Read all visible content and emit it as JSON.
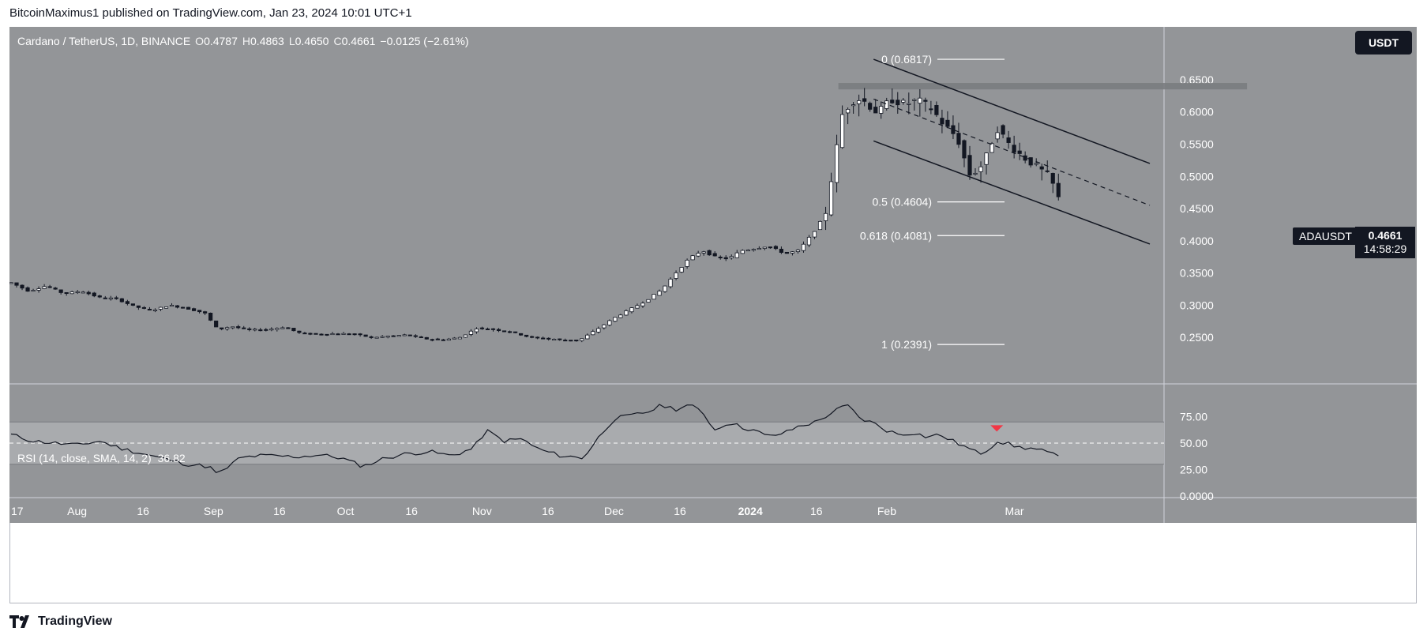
{
  "header": {
    "published": "BitcoinMaximus1 published on TradingView.com, Jan 23, 2024 10:01 UTC+1"
  },
  "legend": {
    "symbol": "Cardano / TetherUS, 1D, BINANCE",
    "o_label": "O",
    "o": "0.4787",
    "h_label": "H",
    "h": "0.4863",
    "l_label": "L",
    "l": "0.4650",
    "c_label": "C",
    "c": "0.4661",
    "change": "−0.0125 (−2.61%)"
  },
  "currency_button": "USDT",
  "symbol_tag": "ADAUSDT",
  "price_tag": {
    "price": "0.4661",
    "countdown": "14:58:29"
  },
  "rsi_legend": {
    "label": "RSI (14, close, SMA, 14, 2)",
    "value": "36.82"
  },
  "footer": {
    "brand": "TradingView"
  },
  "colors": {
    "pane_bg": "#939598",
    "rsi_band": "#a9abae",
    "candle_up": "#ffffff",
    "candle_down": "#131722",
    "marker": "#f23645"
  },
  "chart_data": {
    "type": "candlestick",
    "price_axis": {
      "range": [
        0.2,
        0.71
      ],
      "ticks": [
        0.65,
        0.6,
        0.55,
        0.5,
        0.45,
        0.4,
        0.35,
        0.3,
        0.25
      ],
      "tick_labels": [
        "0.6500",
        "0.6000",
        "0.5500",
        "0.5000",
        "0.4500",
        "0.4000",
        "0.3500",
        "0.3000",
        "0.2500"
      ]
    },
    "time_axis": {
      "labels": [
        "17",
        "Aug",
        "16",
        "Sep",
        "16",
        "Oct",
        "16",
        "Nov",
        "16",
        "Dec",
        "16",
        "2024",
        "16",
        "Feb",
        "Mar"
      ],
      "label_days": [
        0,
        15,
        30,
        46,
        61,
        76,
        91,
        107,
        122,
        137,
        152,
        168,
        183,
        199,
        228
      ],
      "day_range": [
        0,
        238
      ]
    },
    "price_anchors": [
      [
        0,
        0.335
      ],
      [
        4,
        0.322
      ],
      [
        8,
        0.33
      ],
      [
        12,
        0.318
      ],
      [
        16,
        0.322
      ],
      [
        20,
        0.312
      ],
      [
        24,
        0.31
      ],
      [
        28,
        0.298
      ],
      [
        32,
        0.292
      ],
      [
        36,
        0.3
      ],
      [
        40,
        0.295
      ],
      [
        44,
        0.288
      ],
      [
        47,
        0.262
      ],
      [
        50,
        0.267
      ],
      [
        54,
        0.262
      ],
      [
        58,
        0.262
      ],
      [
        62,
        0.266
      ],
      [
        66,
        0.256
      ],
      [
        70,
        0.255
      ],
      [
        74,
        0.256
      ],
      [
        78,
        0.255
      ],
      [
        82,
        0.25
      ],
      [
        86,
        0.252
      ],
      [
        90,
        0.254
      ],
      [
        94,
        0.248
      ],
      [
        98,
        0.246
      ],
      [
        102,
        0.25
      ],
      [
        106,
        0.265
      ],
      [
        110,
        0.262
      ],
      [
        114,
        0.258
      ],
      [
        118,
        0.25
      ],
      [
        122,
        0.248
      ],
      [
        126,
        0.246
      ],
      [
        129,
        0.245
      ],
      [
        133,
        0.262
      ],
      [
        137,
        0.28
      ],
      [
        141,
        0.295
      ],
      [
        144,
        0.306
      ],
      [
        148,
        0.325
      ],
      [
        151,
        0.35
      ],
      [
        154,
        0.372
      ],
      [
        157,
        0.385
      ],
      [
        160,
        0.375
      ],
      [
        163,
        0.372
      ],
      [
        166,
        0.385
      ],
      [
        169,
        0.388
      ],
      [
        172,
        0.392
      ],
      [
        176,
        0.38
      ],
      [
        179,
        0.385
      ],
      [
        182,
        0.41
      ],
      [
        185,
        0.44
      ],
      [
        187,
        0.52
      ],
      [
        189,
        0.6
      ],
      [
        192,
        0.622
      ],
      [
        194,
        0.616
      ],
      [
        197,
        0.598
      ],
      [
        200,
        0.62
      ],
      [
        203,
        0.612
      ],
      [
        206,
        0.618
      ],
      [
        209,
        0.606
      ],
      [
        212,
        0.58
      ],
      [
        215,
        0.56
      ],
      [
        218,
        0.5
      ],
      [
        221,
        0.52
      ],
      [
        224,
        0.575
      ],
      [
        227,
        0.548
      ],
      [
        230,
        0.53
      ],
      [
        233,
        0.515
      ],
      [
        236,
        0.5
      ],
      [
        238,
        0.4661
      ]
    ],
    "candle_count": 190,
    "horizontal_zone": {
      "from": 0.635,
      "to": 0.645
    },
    "channel": {
      "upper": [
        [
          0.6817,
          0
        ],
        [
          0.52,
          52
        ]
      ],
      "middle": [
        [
          0.62,
          0
        ],
        [
          0.455,
          52
        ]
      ],
      "lower": [
        [
          0.555,
          0
        ],
        [
          0.395,
          52
        ]
      ],
      "start_day": 196,
      "end_day": 248
    },
    "fibonacci": [
      {
        "label": "0 (0.6817)",
        "value": 0.6817
      },
      {
        "label": "0.5 (0.4604)",
        "value": 0.4604
      },
      {
        "label": "0.618 (0.4081)",
        "value": 0.4081
      },
      {
        "label": "1 (0.2391)",
        "value": 0.2391
      }
    ],
    "rsi": {
      "range": [
        0,
        100
      ],
      "ticks": [
        75,
        50,
        25,
        0
      ],
      "tick_labels": [
        "75.00",
        "50.00",
        "25.00",
        "0.0000"
      ],
      "band": [
        30,
        70
      ],
      "midline": 50,
      "anchors": [
        [
          0,
          58
        ],
        [
          5,
          52
        ],
        [
          10,
          50
        ],
        [
          15,
          48
        ],
        [
          20,
          52
        ],
        [
          25,
          45
        ],
        [
          30,
          40
        ],
        [
          35,
          35
        ],
        [
          40,
          30
        ],
        [
          45,
          28
        ],
        [
          47,
          20
        ],
        [
          52,
          36
        ],
        [
          56,
          38
        ],
        [
          60,
          38
        ],
        [
          65,
          37
        ],
        [
          70,
          39
        ],
        [
          75,
          36
        ],
        [
          80,
          28
        ],
        [
          85,
          36
        ],
        [
          90,
          40
        ],
        [
          95,
          42
        ],
        [
          100,
          38
        ],
        [
          105,
          45
        ],
        [
          108,
          62
        ],
        [
          112,
          52
        ],
        [
          116,
          54
        ],
        [
          120,
          44
        ],
        [
          125,
          38
        ],
        [
          130,
          36
        ],
        [
          134,
          58
        ],
        [
          137,
          73
        ],
        [
          141,
          76
        ],
        [
          145,
          80
        ],
        [
          148,
          86
        ],
        [
          151,
          82
        ],
        [
          154,
          86
        ],
        [
          157,
          80
        ],
        [
          160,
          62
        ],
        [
          163,
          70
        ],
        [
          166,
          65
        ],
        [
          169,
          62
        ],
        [
          172,
          56
        ],
        [
          176,
          60
        ],
        [
          179,
          66
        ],
        [
          183,
          70
        ],
        [
          187,
          80
        ],
        [
          190,
          86
        ],
        [
          193,
          73
        ],
        [
          196,
          69
        ],
        [
          199,
          62
        ],
        [
          202,
          58
        ],
        [
          205,
          60
        ],
        [
          208,
          56
        ],
        [
          211,
          58
        ],
        [
          214,
          52
        ],
        [
          217,
          46
        ],
        [
          220,
          40
        ],
        [
          222,
          44
        ],
        [
          224,
          52
        ],
        [
          226,
          50
        ],
        [
          229,
          46
        ],
        [
          232,
          45
        ],
        [
          235,
          42
        ],
        [
          238,
          37
        ]
      ],
      "marker_day": 224,
      "last_value": 36.82
    }
  }
}
